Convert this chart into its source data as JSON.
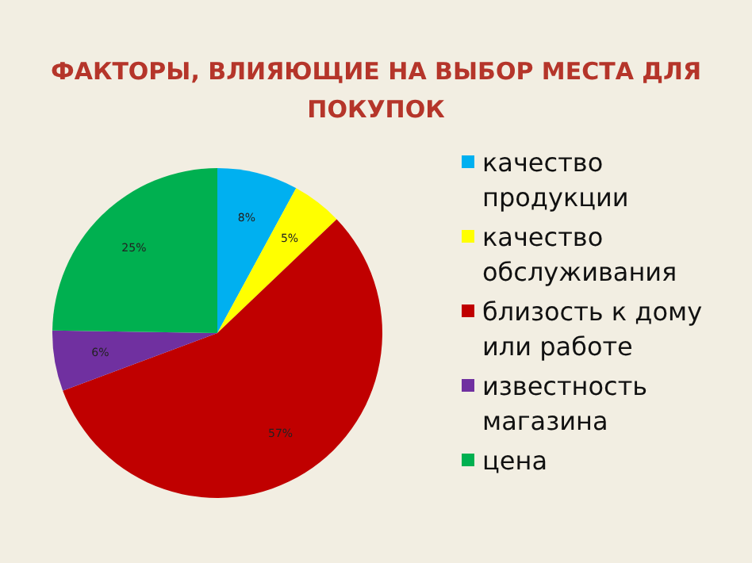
{
  "chart_data": {
    "type": "pie",
    "title": "ФАКТОРЫ, ВЛИЯЮЩИЕ НА ВЫБОР МЕСТА ДЛЯ ПОКУПОК",
    "categories": [
      "качество продукции",
      "качество обслуживания",
      "близость к дому или работе",
      "известность магазина",
      "цена"
    ],
    "values": [
      8,
      5,
      57,
      6,
      25
    ],
    "colors": [
      "#00b0f0",
      "#ffff00",
      "#c00000",
      "#7030a0",
      "#00b050"
    ],
    "value_labels": [
      "8%",
      "5%",
      "57%",
      "6%",
      "25%"
    ],
    "legend": "right"
  }
}
